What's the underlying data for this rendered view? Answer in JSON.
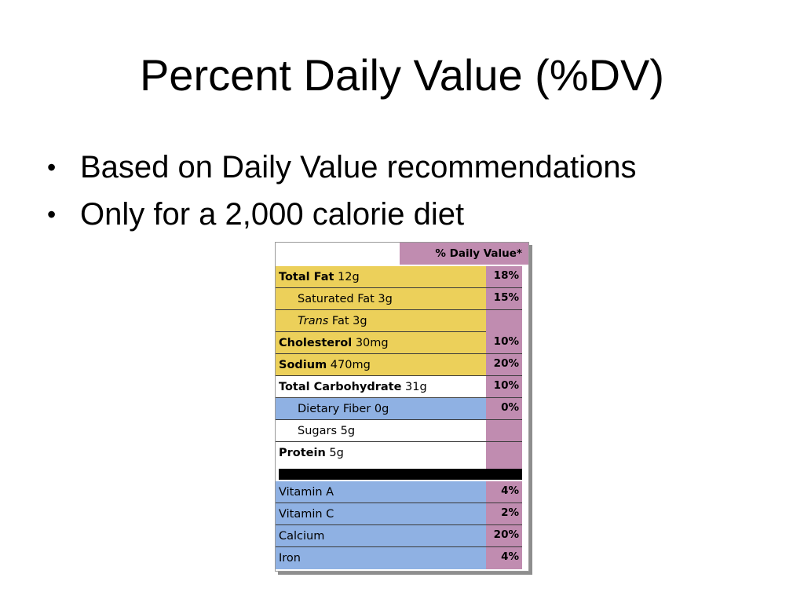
{
  "slide": {
    "title": "Percent Daily Value (%DV)",
    "bullets": [
      "Based on Daily Value recommendations",
      "Only for a 2,000 calorie diet"
    ]
  },
  "label": {
    "header": "% Daily Value*",
    "rows": [
      {
        "bold": "Total Fat",
        "rest": " 12g",
        "pct": "18%"
      },
      {
        "bold": "",
        "rest": "Saturated Fat 3g",
        "pct": "15%"
      },
      {
        "italic": "Trans",
        "rest": " Fat 3g",
        "pct": ""
      },
      {
        "bold": "Cholesterol",
        "rest": " 30mg",
        "pct": "10%"
      },
      {
        "bold": "Sodium",
        "rest": " 470mg",
        "pct": "20%"
      },
      {
        "bold": "Total Carbohydrate",
        "rest": " 31g",
        "pct": "10%"
      },
      {
        "bold": "",
        "rest": "Dietary Fiber 0g",
        "pct": "0%"
      },
      {
        "bold": "",
        "rest": "Sugars 5g",
        "pct": ""
      },
      {
        "bold": "Protein",
        "rest": " 5g",
        "pct": ""
      },
      {
        "bold": "",
        "rest": "Vitamin A",
        "pct": "4%"
      },
      {
        "bold": "",
        "rest": "Vitamin C",
        "pct": "2%"
      },
      {
        "bold": "",
        "rest": "Calcium",
        "pct": "20%"
      },
      {
        "bold": "",
        "rest": "Iron",
        "pct": "4%"
      }
    ]
  },
  "colors": {
    "fat_group": "#ecd05a",
    "daily_value_column": "#c08cb0",
    "vitamin_group": "#8fb1e3"
  }
}
